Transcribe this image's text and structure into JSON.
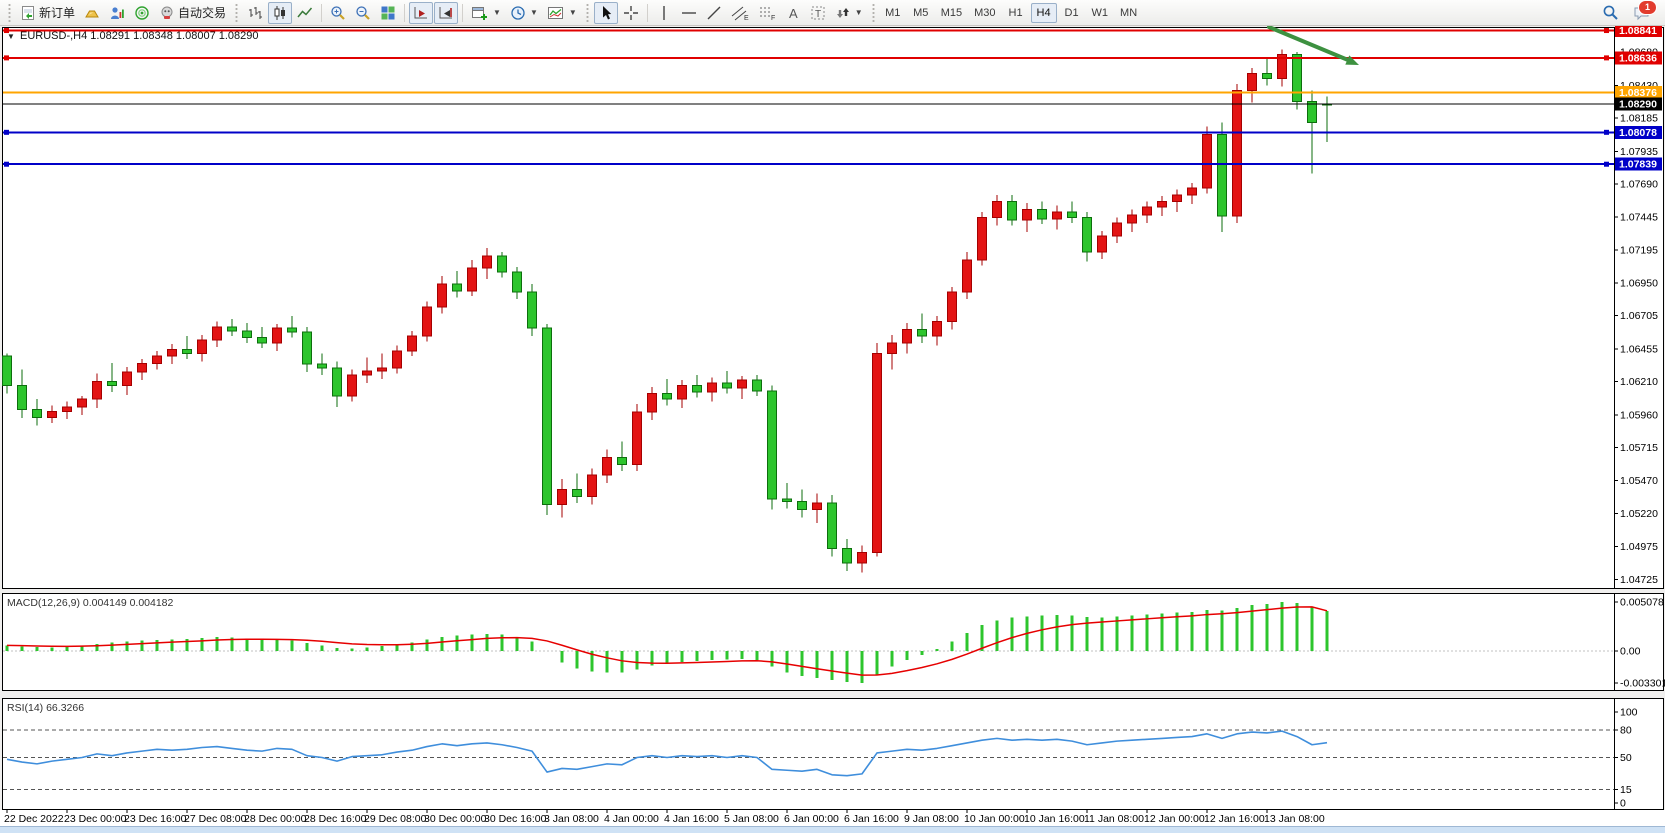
{
  "toolbar": {
    "new_order_label": "新订单",
    "auto_trading_label": "自动交易",
    "timeframes": [
      "M1",
      "M5",
      "M15",
      "M30",
      "H1",
      "H4",
      "D1",
      "W1",
      "MN"
    ],
    "active_timeframe": "H4",
    "notification_badge": "1"
  },
  "price_chart": {
    "collapse_glyph": "▼",
    "title": "EURUSD-,H4",
    "ohlc_text": "1.08291 1.08348 1.08007 1.08290"
  },
  "macd": {
    "name": "MACD(12,26,9)",
    "value_main": "0.004149",
    "value_signal": "0.004182"
  },
  "rsi": {
    "name": "RSI(14)",
    "value": "66.3266"
  },
  "chart_data": [
    {
      "type": "candlestick",
      "symbol": "EURUSD-",
      "timeframe": "H4",
      "last_ohlc": {
        "open": "1.08291",
        "high": "1.08348",
        "low": "1.08007",
        "close": "1.08290"
      },
      "ylim": [
        1.0467,
        1.0886
      ],
      "yticks": [
        1.0868,
        1.0843,
        1.08185,
        1.07935,
        1.0769,
        1.07445,
        1.07195,
        1.0695,
        1.06705,
        1.06455,
        1.0621,
        1.0596,
        1.05715,
        1.0547,
        1.0522,
        1.04975,
        1.04725
      ],
      "x_labels": [
        "22 Dec 2022",
        "23 Dec 00:00",
        "23 Dec 16:00",
        "27 Dec 08:00",
        "28 Dec 00:00",
        "28 Dec 16:00",
        "29 Dec 08:00",
        "30 Dec 00:00",
        "30 Dec 16:00",
        "3 Jan 08:00",
        "4 Jan 00:00",
        "4 Jan 16:00",
        "5 Jan 08:00",
        "6 Jan 00:00",
        "6 Jan 16:00",
        "9 Jan 08:00",
        "10 Jan 00:00",
        "10 Jan 16:00",
        "11 Jan 08:00",
        "12 Jan 00:00",
        "12 Jan 16:00",
        "13 Jan 08:00"
      ],
      "colors": {
        "bull": "#e31414",
        "bull_line": "#a50000",
        "bear": "#2dc52d",
        "bear_line": "#0d6e0d"
      },
      "hlines": [
        {
          "price": 1.08841,
          "label": "1.08841",
          "color": "#e00000",
          "label_bg": "#e00000",
          "handles": true
        },
        {
          "price": 1.08636,
          "label": "1.08636",
          "color": "#e00000",
          "label_bg": "#e00000",
          "handles": true
        },
        {
          "price": 1.08376,
          "label": "1.08376",
          "color": "#ffa500",
          "label_bg": "#ffa500",
          "handles": false
        },
        {
          "price": 1.08078,
          "label": "1.08078",
          "color": "#0000c8",
          "label_bg": "#0000c8",
          "handles": true
        },
        {
          "price": 1.07839,
          "label": "1.07839",
          "color": "#0000c8",
          "label_bg": "#0000c8",
          "handles": true
        }
      ],
      "price_line": {
        "price": 1.0829,
        "label": "1.08290",
        "color": "#000000",
        "label_bg": "#000000"
      },
      "annotation": {
        "type": "arrow",
        "color": "#3d9140"
      },
      "candles": [
        [
          1.064,
          1.0642,
          1.0612,
          1.0618
        ],
        [
          1.0618,
          1.063,
          1.05935,
          1.06
        ],
        [
          1.06,
          1.0608,
          1.0588,
          1.0594
        ],
        [
          1.0594,
          1.0603,
          1.059,
          1.05985
        ],
        [
          1.05985,
          1.0606,
          1.0593,
          1.0602
        ],
        [
          1.0602,
          1.061,
          1.0596,
          1.0608
        ],
        [
          1.0608,
          1.0627,
          1.0601,
          1.0621
        ],
        [
          1.0621,
          1.0635,
          1.0613,
          1.0618
        ],
        [
          1.0618,
          1.0632,
          1.0611,
          1.0628
        ],
        [
          1.0628,
          1.0638,
          1.0622,
          1.06345
        ],
        [
          1.06345,
          1.0644,
          1.063,
          1.064
        ],
        [
          1.064,
          1.0649,
          1.0634,
          1.0645
        ],
        [
          1.0645,
          1.0655,
          1.0638,
          1.0642
        ],
        [
          1.0642,
          1.0656,
          1.0636,
          1.0652
        ],
        [
          1.0652,
          1.0666,
          1.0647,
          1.0662
        ],
        [
          1.0662,
          1.0668,
          1.0655,
          1.0659
        ],
        [
          1.0659,
          1.0665,
          1.065,
          1.0654
        ],
        [
          1.0654,
          1.0662,
          1.0646,
          1.065
        ],
        [
          1.065,
          1.0664,
          1.0644,
          1.0661
        ],
        [
          1.0661,
          1.067,
          1.0654,
          1.0658
        ],
        [
          1.0658,
          1.0662,
          1.0628,
          1.0634
        ],
        [
          1.0634,
          1.0642,
          1.0626,
          1.0631
        ],
        [
          1.0631,
          1.0636,
          1.0602,
          1.061
        ],
        [
          1.061,
          1.063,
          1.0606,
          1.0626
        ],
        [
          1.0626,
          1.0639,
          1.062,
          1.0629
        ],
        [
          1.0629,
          1.0642,
          1.0623,
          1.0631
        ],
        [
          1.0631,
          1.0648,
          1.0627,
          1.0644
        ],
        [
          1.0644,
          1.0659,
          1.064,
          1.0655
        ],
        [
          1.0655,
          1.0681,
          1.0651,
          1.0677
        ],
        [
          1.0677,
          1.07,
          1.0672,
          1.0694
        ],
        [
          1.0694,
          1.0704,
          1.0684,
          1.0689
        ],
        [
          1.0689,
          1.0712,
          1.0685,
          1.0706
        ],
        [
          1.0706,
          1.0721,
          1.0698,
          1.0715
        ],
        [
          1.0715,
          1.0718,
          1.0699,
          1.0703
        ],
        [
          1.0703,
          1.0707,
          1.0683,
          1.0688
        ],
        [
          1.0688,
          1.0694,
          1.0655,
          1.0661
        ],
        [
          1.0661,
          1.0664,
          1.0521,
          1.0529
        ],
        [
          1.0529,
          1.0548,
          1.0519,
          1.054
        ],
        [
          1.054,
          1.0552,
          1.053,
          1.0535
        ],
        [
          1.0535,
          1.0556,
          1.0529,
          1.0551
        ],
        [
          1.0551,
          1.057,
          1.0545,
          1.0564
        ],
        [
          1.0564,
          1.0576,
          1.0554,
          1.0559
        ],
        [
          1.0559,
          1.0604,
          1.0554,
          1.0598
        ],
        [
          1.0598,
          1.0617,
          1.0592,
          1.0612
        ],
        [
          1.0612,
          1.0623,
          1.0603,
          1.0608
        ],
        [
          1.0608,
          1.0622,
          1.0601,
          1.0618
        ],
        [
          1.0618,
          1.0626,
          1.0609,
          1.0613
        ],
        [
          1.0613,
          1.0624,
          1.0606,
          1.062
        ],
        [
          1.062,
          1.0629,
          1.0612,
          1.0616
        ],
        [
          1.0616,
          1.0625,
          1.0608,
          1.0622
        ],
        [
          1.0622,
          1.0626,
          1.061,
          1.0614
        ],
        [
          1.0614,
          1.0618,
          1.0525,
          1.0533
        ],
        [
          1.0533,
          1.0545,
          1.0526,
          1.0531
        ],
        [
          1.0531,
          1.054,
          1.0519,
          1.0525
        ],
        [
          1.0525,
          1.0537,
          1.0515,
          1.053
        ],
        [
          1.053,
          1.0536,
          1.049,
          1.0496
        ],
        [
          1.0496,
          1.0503,
          1.0479,
          1.0485
        ],
        [
          1.0485,
          1.0498,
          1.0478,
          1.0493
        ],
        [
          1.0493,
          1.065,
          1.049,
          1.0642
        ],
        [
          1.0642,
          1.0656,
          1.063,
          1.065
        ],
        [
          1.065,
          1.0665,
          1.0642,
          1.066
        ],
        [
          1.066,
          1.0672,
          1.065,
          1.0655
        ],
        [
          1.0655,
          1.067,
          1.0648,
          1.0666
        ],
        [
          1.0666,
          1.0692,
          1.066,
          1.0688
        ],
        [
          1.0688,
          1.0718,
          1.0683,
          1.0712
        ],
        [
          1.0712,
          1.0748,
          1.0708,
          1.0744
        ],
        [
          1.0744,
          1.0761,
          1.0738,
          1.0756
        ],
        [
          1.0756,
          1.0761,
          1.0738,
          1.0742
        ],
        [
          1.0742,
          1.0755,
          1.0733,
          1.075
        ],
        [
          1.075,
          1.0756,
          1.0739,
          1.0743
        ],
        [
          1.0743,
          1.0753,
          1.0735,
          1.0748
        ],
        [
          1.0748,
          1.0756,
          1.074,
          1.0744
        ],
        [
          1.0744,
          1.0748,
          1.0711,
          1.0718
        ],
        [
          1.0718,
          1.0734,
          1.0713,
          1.073
        ],
        [
          1.073,
          1.0744,
          1.0725,
          1.074
        ],
        [
          1.074,
          1.075,
          1.0733,
          1.0746
        ],
        [
          1.0746,
          1.0756,
          1.074,
          1.0752
        ],
        [
          1.0752,
          1.076,
          1.0745,
          1.0756
        ],
        [
          1.0756,
          1.0765,
          1.0748,
          1.0761
        ],
        [
          1.0761,
          1.077,
          1.0754,
          1.0766
        ],
        [
          1.0766,
          1.0812,
          1.0762,
          1.0806
        ],
        [
          1.0806,
          1.0815,
          1.0733,
          1.0745
        ],
        [
          1.0745,
          1.0844,
          1.074,
          1.0839
        ],
        [
          1.0839,
          1.0856,
          1.083,
          1.0852
        ],
        [
          1.0852,
          1.0864,
          1.0843,
          1.0848
        ],
        [
          1.0848,
          1.087,
          1.0842,
          1.0866
        ],
        [
          1.0866,
          1.0868,
          1.0825,
          1.0831
        ],
        [
          1.0831,
          1.0839,
          1.0777,
          1.0815
        ],
        [
          1.08291,
          1.08348,
          1.08007,
          1.0829
        ]
      ]
    },
    {
      "type": "macd",
      "title": "MACD(12,26,9)",
      "ylim": [
        -0.00392,
        0.00592
      ],
      "yticks": [
        0.005078,
        0.0,
        -0.003301
      ],
      "colors": {
        "histogram": "#2dc52d",
        "signal": "#e60000"
      },
      "values": [
        0.0006,
        0.0005,
        0.00042,
        0.0004,
        0.00048,
        0.00058,
        0.00075,
        0.00088,
        0.001,
        0.0011,
        0.00118,
        0.0012,
        0.00128,
        0.00138,
        0.00148,
        0.00142,
        0.00132,
        0.00122,
        0.0012,
        0.00112,
        0.00082,
        0.0006,
        0.00032,
        0.0003,
        0.0004,
        0.00052,
        0.0007,
        0.00092,
        0.0012,
        0.00148,
        0.0016,
        0.0017,
        0.00178,
        0.0017,
        0.0014,
        0.001,
        0.0,
        -0.0012,
        -0.0018,
        -0.0021,
        -0.0022,
        -0.00222,
        -0.0019,
        -0.0015,
        -0.0013,
        -0.0011,
        -0.001,
        -0.00092,
        -0.00085,
        -0.0008,
        -0.0009,
        -0.0016,
        -0.0022,
        -0.00258,
        -0.0028,
        -0.003,
        -0.00318,
        -0.0033,
        -0.0024,
        -0.0016,
        -0.0009,
        -0.0004,
        0.0002,
        0.001,
        0.0019,
        0.0027,
        0.0032,
        0.0035,
        0.0036,
        0.0037,
        0.00372,
        0.0037,
        0.00352,
        0.0035,
        0.00358,
        0.00368,
        0.00378,
        0.00388,
        0.00398,
        0.00408,
        0.00428,
        0.0042,
        0.00448,
        0.00478,
        0.0049,
        0.00508,
        0.005,
        0.00462,
        0.00415
      ],
      "signal": [
        0.0006,
        0.00057,
        0.00054,
        0.00051,
        0.0005,
        0.00052,
        0.00056,
        0.00063,
        0.0007,
        0.00078,
        0.00086,
        0.00093,
        0.001,
        0.00107,
        0.00115,
        0.00121,
        0.00123,
        0.00123,
        0.00122,
        0.0012,
        0.00113,
        0.00102,
        0.00088,
        0.00076,
        0.00069,
        0.00066,
        0.00066,
        0.00072,
        0.00081,
        0.00095,
        0.00108,
        0.0012,
        0.00132,
        0.00139,
        0.0014,
        0.00132,
        0.00106,
        0.00061,
        0.00013,
        -0.00032,
        -0.00069,
        -0.001,
        -0.00118,
        -0.00124,
        -0.00125,
        -0.00122,
        -0.00118,
        -0.00112,
        -0.00107,
        -0.00101,
        -0.00099,
        -0.00111,
        -0.00133,
        -0.00158,
        -0.00182,
        -0.00206,
        -0.00228,
        -0.00248,
        -0.00247,
        -0.0023,
        -0.00202,
        -0.00169,
        -0.00131,
        -0.00085,
        -0.0003,
        0.0003,
        0.00088,
        0.0014,
        0.00184,
        0.00221,
        0.00251,
        0.00275,
        0.0029,
        0.00302,
        0.00313,
        0.00324,
        0.00335,
        0.00346,
        0.00356,
        0.00366,
        0.00379,
        0.00387,
        0.00399,
        0.00415,
        0.0043,
        0.00446,
        0.00457,
        0.00458,
        0.00418
      ]
    },
    {
      "type": "line",
      "title": "RSI(14)",
      "ylim": [
        0,
        100
      ],
      "yticks": [
        100,
        80,
        50,
        15,
        0
      ],
      "levels": [
        80,
        50,
        15
      ],
      "color": "#3f8edc",
      "values": [
        48,
        45,
        43,
        46,
        48,
        50,
        54,
        52,
        55,
        57,
        59,
        58,
        59,
        61,
        62,
        60,
        58,
        57,
        60,
        59,
        52,
        50,
        46,
        51,
        52,
        53,
        56,
        58,
        62,
        65,
        63,
        65,
        66,
        64,
        61,
        57,
        34,
        38,
        37,
        40,
        43,
        42,
        50,
        52,
        50,
        52,
        51,
        52,
        50,
        52,
        50,
        37,
        36,
        35,
        37,
        31,
        30,
        32,
        55,
        57,
        59,
        58,
        60,
        63,
        66,
        69,
        71,
        69,
        70,
        69,
        70,
        68,
        64,
        66,
        68,
        69,
        70,
        71,
        72,
        73,
        76,
        71,
        76,
        78,
        77,
        79,
        73,
        64,
        66.3
      ]
    }
  ]
}
